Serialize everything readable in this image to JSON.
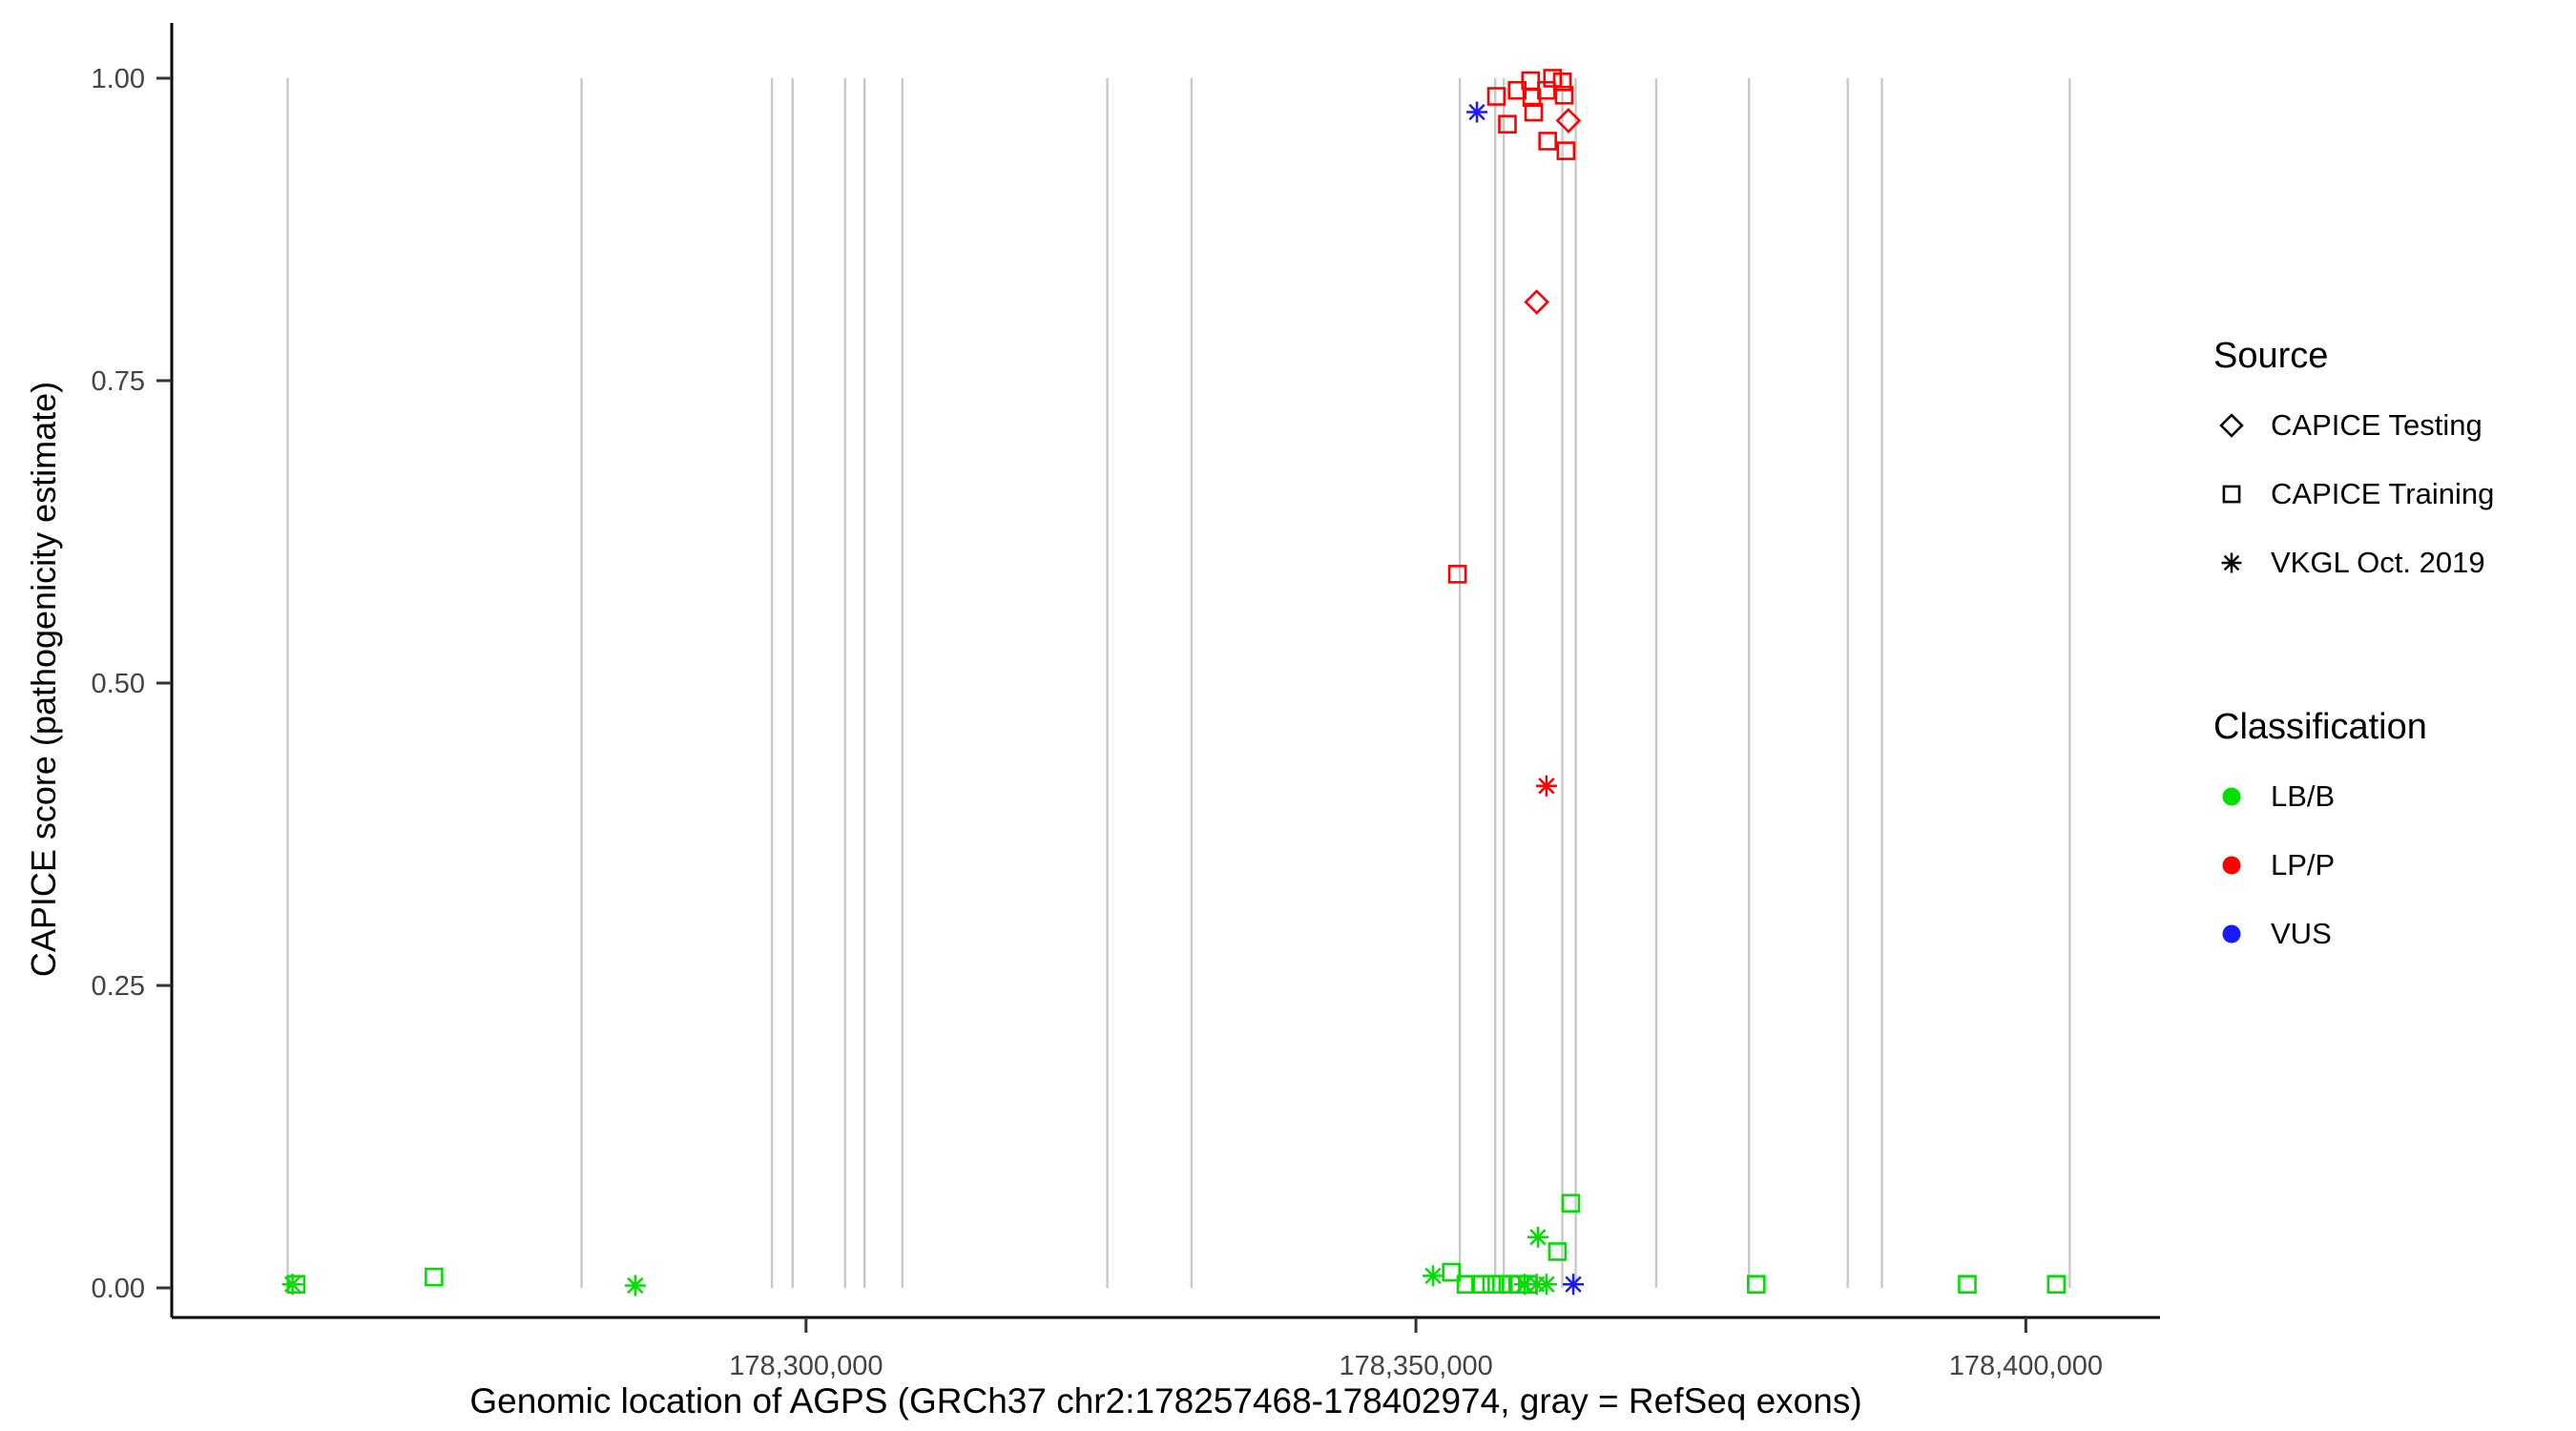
{
  "axes": {
    "x": {
      "title": "Genomic location of AGPS (GRCh37 chr2:178257468-178402974, gray = RefSeq exons)"
    },
    "y": {
      "title": "CAPICE score (pathogenicity estimate)"
    }
  },
  "legend": {
    "source": {
      "title": "Source",
      "items": [
        {
          "label": "CAPICE Testing",
          "shape": "diamond"
        },
        {
          "label": "CAPICE Training",
          "shape": "square"
        },
        {
          "label": "VKGL Oct. 2019",
          "shape": "asterisk"
        }
      ]
    },
    "classification": {
      "title": "Classification",
      "items": [
        {
          "label": "LB/B",
          "color": "#00DF00"
        },
        {
          "label": "LP/P",
          "color": "#FF0000"
        },
        {
          "label": "VUS",
          "color": "#1A1AFF"
        }
      ]
    }
  },
  "chart_data": {
    "type": "scatter",
    "title": "",
    "xlabel": "Genomic location of AGPS (GRCh37 chr2:178257468-178402974, gray = RefSeq exons)",
    "ylabel": "CAPICE score (pathogenicity estimate)",
    "x_domain": [
      178248000,
      178411000
    ],
    "y_domain": [
      0,
      1
    ],
    "x_ticks": [
      178300000,
      178350000,
      178400000
    ],
    "x_tick_labels": [
      "178,300,000",
      "178,350,000",
      "178,400,000"
    ],
    "y_ticks": [
      0,
      0.25,
      0.5,
      0.75,
      1.0
    ],
    "y_tick_labels": [
      "0.00",
      "0.25",
      "0.50",
      "0.75",
      "1.00"
    ],
    "grid": false,
    "legend_position": "right",
    "exon_color": "#C8C8C8",
    "exon_positions": [
      178257500,
      178281600,
      178297200,
      178298900,
      178303200,
      178304800,
      178307900,
      178324700,
      178331600,
      178353600,
      178356500,
      178357200,
      178362000,
      178363100,
      178369700,
      178377300,
      178385400,
      178388200,
      178403600
    ],
    "colors": {
      "LB/B": "#00DF00",
      "LP/P": "#FF0000",
      "VUS": "#1A1AFF"
    },
    "shapes": {
      "CAPICE Testing": "diamond",
      "CAPICE Training": "square",
      "VKGL Oct. 2019": "asterisk"
    },
    "points": [
      {
        "pos": 178257900,
        "score": 0.003,
        "source": "VKGL Oct. 2019",
        "classification": "LB/B"
      },
      {
        "pos": 178258200,
        "score": 0.003,
        "source": "CAPICE Training",
        "classification": "LB/B"
      },
      {
        "pos": 178269500,
        "score": 0.009,
        "source": "CAPICE Training",
        "classification": "LB/B"
      },
      {
        "pos": 178286000,
        "score": 0.002,
        "source": "VKGL Oct. 2019",
        "classification": "LB/B"
      },
      {
        "pos": 178351400,
        "score": 0.01,
        "source": "VKGL Oct. 2019",
        "classification": "LB/B"
      },
      {
        "pos": 178352900,
        "score": 0.013,
        "source": "CAPICE Training",
        "classification": "LB/B"
      },
      {
        "pos": 178354100,
        "score": 0.003,
        "source": "CAPICE Training",
        "classification": "LB/B"
      },
      {
        "pos": 178355300,
        "score": 0.003,
        "source": "CAPICE Training",
        "classification": "LB/B"
      },
      {
        "pos": 178356200,
        "score": 0.003,
        "source": "CAPICE Training",
        "classification": "LB/B"
      },
      {
        "pos": 178357000,
        "score": 0.003,
        "source": "CAPICE Training",
        "classification": "LB/B"
      },
      {
        "pos": 178357800,
        "score": 0.003,
        "source": "CAPICE Training",
        "classification": "LB/B"
      },
      {
        "pos": 178358500,
        "score": 0.003,
        "source": "CAPICE Training",
        "classification": "LB/B"
      },
      {
        "pos": 178359200,
        "score": 0.003,
        "source": "CAPICE Training",
        "classification": "LB/B"
      },
      {
        "pos": 178358900,
        "score": 0.003,
        "source": "VKGL Oct. 2019",
        "classification": "LB/B"
      },
      {
        "pos": 178359900,
        "score": 0.003,
        "source": "VKGL Oct. 2019",
        "classification": "LB/B"
      },
      {
        "pos": 178360700,
        "score": 0.003,
        "source": "VKGL Oct. 2019",
        "classification": "LB/B"
      },
      {
        "pos": 178360000,
        "score": 0.042,
        "source": "VKGL Oct. 2019",
        "classification": "LB/B"
      },
      {
        "pos": 178361600,
        "score": 0.03,
        "source": "CAPICE Training",
        "classification": "LB/B"
      },
      {
        "pos": 178362700,
        "score": 0.07,
        "source": "CAPICE Training",
        "classification": "LB/B"
      },
      {
        "pos": 178377900,
        "score": 0.003,
        "source": "CAPICE Training",
        "classification": "LB/B"
      },
      {
        "pos": 178395200,
        "score": 0.003,
        "source": "CAPICE Training",
        "classification": "LB/B"
      },
      {
        "pos": 178402500,
        "score": 0.003,
        "source": "CAPICE Training",
        "classification": "LB/B"
      },
      {
        "pos": 178353400,
        "score": 0.59,
        "source": "CAPICE Training",
        "classification": "LP/P"
      },
      {
        "pos": 178356600,
        "score": 0.985,
        "source": "CAPICE Training",
        "classification": "LP/P"
      },
      {
        "pos": 178357500,
        "score": 0.962,
        "source": "CAPICE Training",
        "classification": "LP/P"
      },
      {
        "pos": 178358300,
        "score": 0.99,
        "source": "CAPICE Training",
        "classification": "LP/P"
      },
      {
        "pos": 178359400,
        "score": 0.998,
        "source": "CAPICE Training",
        "classification": "LP/P"
      },
      {
        "pos": 178359500,
        "score": 0.984,
        "source": "CAPICE Training",
        "classification": "LP/P"
      },
      {
        "pos": 178359650,
        "score": 0.972,
        "source": "CAPICE Training",
        "classification": "LP/P"
      },
      {
        "pos": 178360700,
        "score": 0.99,
        "source": "CAPICE Training",
        "classification": "LP/P"
      },
      {
        "pos": 178360800,
        "score": 0.948,
        "source": "CAPICE Training",
        "classification": "LP/P"
      },
      {
        "pos": 178361200,
        "score": 1.0,
        "source": "CAPICE Training",
        "classification": "LP/P"
      },
      {
        "pos": 178362000,
        "score": 0.997,
        "source": "CAPICE Training",
        "classification": "LP/P"
      },
      {
        "pos": 178362150,
        "score": 0.986,
        "source": "CAPICE Training",
        "classification": "LP/P"
      },
      {
        "pos": 178362300,
        "score": 0.94,
        "source": "CAPICE Training",
        "classification": "LP/P"
      },
      {
        "pos": 178359900,
        "score": 0.815,
        "source": "CAPICE Testing",
        "classification": "LP/P"
      },
      {
        "pos": 178362500,
        "score": 0.965,
        "source": "CAPICE Testing",
        "classification": "LP/P"
      },
      {
        "pos": 178360700,
        "score": 0.415,
        "source": "VKGL Oct. 2019",
        "classification": "LP/P"
      },
      {
        "pos": 178355000,
        "score": 0.972,
        "source": "VKGL Oct. 2019",
        "classification": "VUS"
      },
      {
        "pos": 178362900,
        "score": 0.003,
        "source": "VKGL Oct. 2019",
        "classification": "VUS"
      }
    ]
  }
}
